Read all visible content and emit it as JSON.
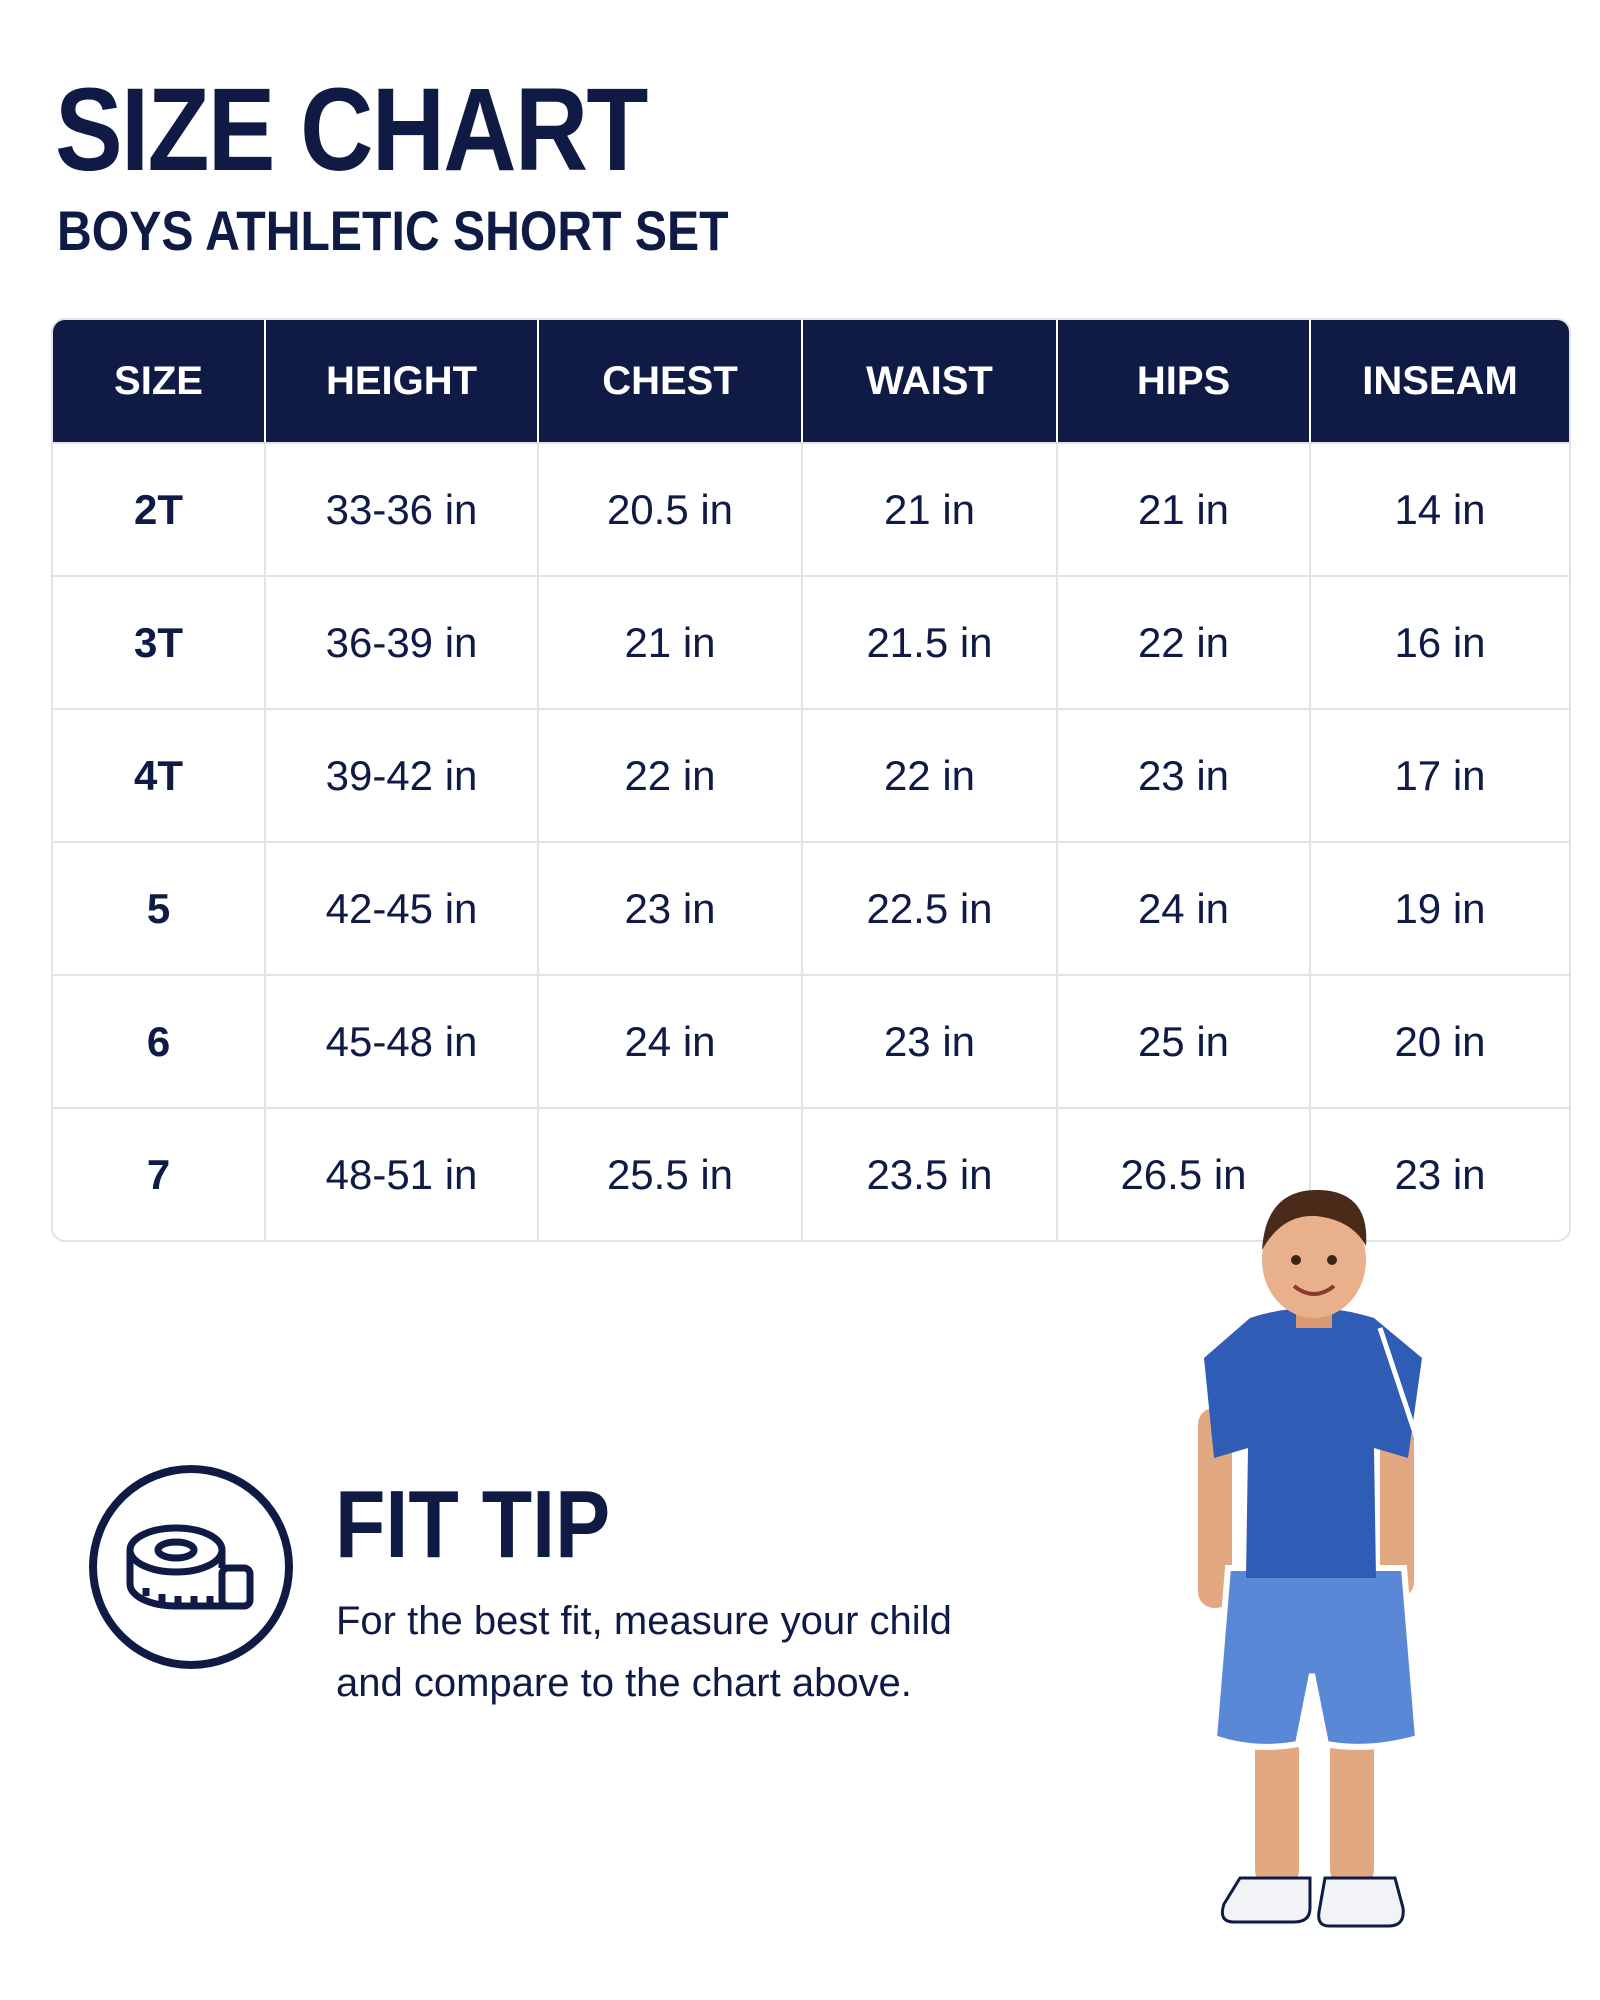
{
  "header": {
    "title": "SIZE CHART",
    "subtitle": "BOYS ATHLETIC SHORT SET"
  },
  "table": {
    "columns": [
      "SIZE",
      "HEIGHT",
      "CHEST",
      "WAIST",
      "HIPS",
      "INSEAM"
    ],
    "rows": [
      [
        "2T",
        "33-36 in",
        "20.5 in",
        "21 in",
        "21 in",
        "14 in"
      ],
      [
        "3T",
        "36-39 in",
        "21 in",
        "21.5 in",
        "22 in",
        "16 in"
      ],
      [
        "4T",
        "39-42 in",
        "22 in",
        "22 in",
        "23 in",
        "17 in"
      ],
      [
        "5",
        "42-45 in",
        "23 in",
        "22.5 in",
        "24 in",
        "19 in"
      ],
      [
        "6",
        "45-48 in",
        "24 in",
        "23 in",
        "25 in",
        "20 in"
      ],
      [
        "7",
        "48-51 in",
        "25.5 in",
        "23.5 in",
        "26.5 in",
        "23 in"
      ]
    ]
  },
  "fit_tip": {
    "title": "FIT TIP",
    "lines": [
      "For the best fit, measure your child",
      "and compare to the chart above."
    ]
  }
}
